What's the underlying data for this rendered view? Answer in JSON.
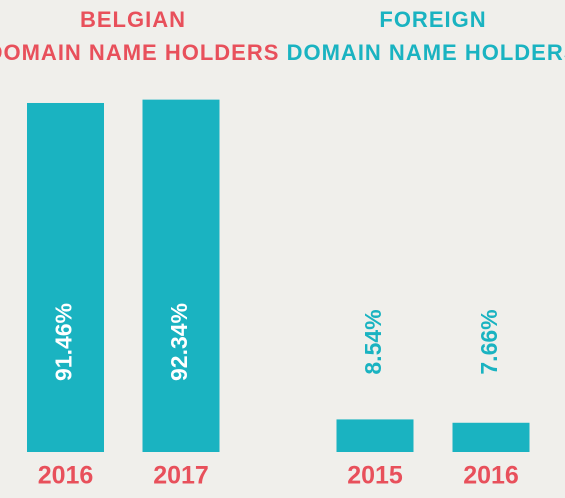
{
  "chart_data": [
    {
      "type": "bar",
      "title": [
        "BELGIAN",
        "DOMAIN NAME HOLDERS"
      ],
      "title_color": "#e8505b",
      "categories": [
        "2016",
        "2017"
      ],
      "values": [
        91.46,
        92.34
      ],
      "value_labels": [
        "91.46%",
        "92.34%"
      ],
      "color": "#1ab3c1",
      "value_label_color": "#ffffff",
      "category_color": "#e8505b"
    },
    {
      "type": "bar",
      "title": [
        "FOREIGN",
        "DOMAIN NAME HOLDERS"
      ],
      "title_color": "#1ab3c1",
      "categories": [
        "2015",
        "2016"
      ],
      "values": [
        8.54,
        7.66
      ],
      "value_labels": [
        "8.54%",
        "7.66%"
      ],
      "color": "#1ab3c1",
      "value_label_color": "#1ab3c1",
      "category_color": "#e8505b"
    }
  ]
}
